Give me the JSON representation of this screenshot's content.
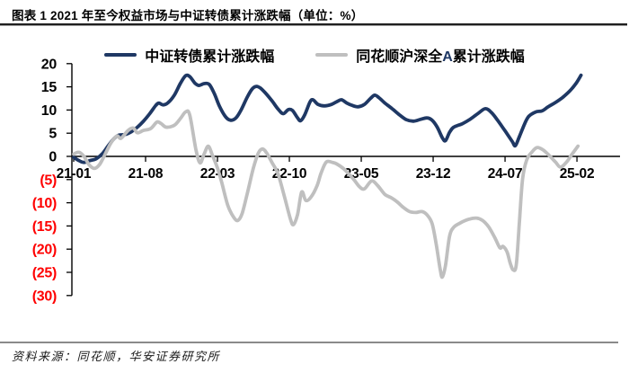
{
  "header": {
    "title": "图表 1  2021 年至今权益市场与中证转债累计涨跌幅（单位：%）"
  },
  "legend": {
    "items": [
      {
        "name": "中证转债累计涨跌幅",
        "color": "#1F3864"
      },
      {
        "name": "同花顺沪深全A累计涨跌幅",
        "color": "#BFBFBF",
        "accent_char": "A",
        "accent_color": "#1F3864"
      }
    ]
  },
  "chart_data": {
    "type": "line",
    "title": "2021 年至今权益市场与中证转债累计涨跌幅",
    "unit": "%",
    "grid": false,
    "legend_position": "top",
    "x_axis": {
      "start_month": "2021-01",
      "end_month": "2025-02",
      "tick_labels": [
        "21-01",
        "21-08",
        "22-03",
        "22-10",
        "23-05",
        "23-12",
        "24-07",
        "25-02"
      ],
      "tick_months": [
        0,
        7,
        14,
        21,
        28,
        35,
        42,
        49
      ]
    },
    "y_axis": {
      "ylim": [
        -30,
        20
      ],
      "ticks": [
        20,
        15,
        10,
        5,
        0,
        -5,
        -10,
        -15,
        -20,
        -25,
        -30
      ],
      "tick_labels": [
        "20",
        "15",
        "10",
        "5",
        "0",
        "(5)",
        "(10)",
        "(15)",
        "(20)",
        "(25)",
        "(30)"
      ],
      "positive_color": "#000000",
      "negative_color": "#FF0000"
    },
    "series": [
      {
        "name": "中证转债累计涨跌幅",
        "color": "#1F3864",
        "stroke_width": 3.8,
        "points_format": [
          "months_since_2021_01",
          "cumulative_pct"
        ],
        "points": [
          [
            0,
            -0.2
          ],
          [
            0.5,
            -0.9
          ],
          [
            1,
            -1.3
          ],
          [
            1.6,
            -0.9
          ],
          [
            2.2,
            -0.5
          ],
          [
            2.8,
            0.6
          ],
          [
            3.4,
            2.4
          ],
          [
            4,
            4
          ],
          [
            4.4,
            4.6
          ],
          [
            5,
            4.7
          ],
          [
            5.6,
            5.3
          ],
          [
            6.2,
            6.3
          ],
          [
            6.8,
            7.6
          ],
          [
            7.4,
            9.2
          ],
          [
            8,
            11
          ],
          [
            8.3,
            11.5
          ],
          [
            8.7,
            11.1
          ],
          [
            9.2,
            11.6
          ],
          [
            9.8,
            13.2
          ],
          [
            10.4,
            15.8
          ],
          [
            10.9,
            17.4
          ],
          [
            11.3,
            17.2
          ],
          [
            11.8,
            15.8
          ],
          [
            12.2,
            15.3
          ],
          [
            12.7,
            15.7
          ],
          [
            13.2,
            15.5
          ],
          [
            13.7,
            13.5
          ],
          [
            14.2,
            10.8
          ],
          [
            14.8,
            8.5
          ],
          [
            15.3,
            7.8
          ],
          [
            15.8,
            8.3
          ],
          [
            16.3,
            10
          ],
          [
            16.9,
            12.8
          ],
          [
            17.4,
            14.6
          ],
          [
            17.8,
            15.1
          ],
          [
            18.2,
            14.7
          ],
          [
            18.7,
            13.6
          ],
          [
            19.3,
            12
          ],
          [
            19.9,
            10.2
          ],
          [
            20.4,
            9.2
          ],
          [
            20.9,
            10.1
          ],
          [
            21.3,
            9.9
          ],
          [
            21.8,
            8.3
          ],
          [
            22.1,
            7.7
          ],
          [
            22.5,
            9
          ],
          [
            23,
            11.7
          ],
          [
            23.3,
            12.2
          ],
          [
            23.8,
            11.2
          ],
          [
            24.4,
            10.9
          ],
          [
            25.1,
            11.2
          ],
          [
            25.7,
            11.9
          ],
          [
            26.1,
            12.2
          ],
          [
            26.6,
            11.5
          ],
          [
            27.1,
            11
          ],
          [
            27.7,
            10.7
          ],
          [
            28.3,
            11.2
          ],
          [
            28.9,
            12.5
          ],
          [
            29.3,
            13.2
          ],
          [
            29.7,
            12.7
          ],
          [
            30.3,
            11.5
          ],
          [
            31,
            10.3
          ],
          [
            31.7,
            9
          ],
          [
            32.4,
            7.9
          ],
          [
            33.1,
            7.6
          ],
          [
            33.8,
            8
          ],
          [
            34.4,
            8.3
          ],
          [
            34.9,
            7.8
          ],
          [
            35.4,
            6.3
          ],
          [
            35.9,
            4
          ],
          [
            36.2,
            3.4
          ],
          [
            36.6,
            5.2
          ],
          [
            37,
            6.3
          ],
          [
            37.8,
            7
          ],
          [
            38.6,
            8
          ],
          [
            39.4,
            9.3
          ],
          [
            40.1,
            10.3
          ],
          [
            40.7,
            9.4
          ],
          [
            41.3,
            7.7
          ],
          [
            42,
            5.5
          ],
          [
            42.7,
            3.2
          ],
          [
            43,
            2.3
          ],
          [
            43.4,
            4.3
          ],
          [
            43.9,
            7
          ],
          [
            44.3,
            8.6
          ],
          [
            45,
            9.6
          ],
          [
            45.6,
            9.8
          ],
          [
            46.2,
            10.7
          ],
          [
            46.9,
            11.6
          ],
          [
            47.6,
            12.7
          ],
          [
            48.3,
            14.1
          ],
          [
            48.9,
            15.7
          ],
          [
            49.4,
            17.5
          ]
        ]
      },
      {
        "name": "同花顺沪深全A累计涨跌幅",
        "color": "#BFBFBF",
        "stroke_width": 3.8,
        "points_format": [
          "months_since_2021_01",
          "cumulative_pct"
        ],
        "points": [
          [
            0,
            0.5
          ],
          [
            0.5,
            0.9
          ],
          [
            1,
            0
          ],
          [
            1.5,
            -1.8
          ],
          [
            2,
            -2.6
          ],
          [
            2.5,
            -1.8
          ],
          [
            3,
            0.2
          ],
          [
            3.6,
            2.8
          ],
          [
            4.2,
            4.4
          ],
          [
            4.6,
            3.9
          ],
          [
            5.3,
            5.6
          ],
          [
            5.8,
            6.1
          ],
          [
            6.2,
            5.1
          ],
          [
            6.8,
            5.6
          ],
          [
            7.5,
            6
          ],
          [
            8.1,
            7.4
          ],
          [
            8.5,
            7.1
          ],
          [
            9,
            6.3
          ],
          [
            9.8,
            6.7
          ],
          [
            10.4,
            8.2
          ],
          [
            10.9,
            9.6
          ],
          [
            11.3,
            8.9
          ],
          [
            11.9,
            1.5
          ],
          [
            12.3,
            -1.4
          ],
          [
            12.7,
            0.5
          ],
          [
            13.1,
            2.2
          ],
          [
            13.5,
            0.3
          ],
          [
            14,
            -2.5
          ],
          [
            14.4,
            -5.5
          ],
          [
            15,
            -10.5
          ],
          [
            15.6,
            -13.2
          ],
          [
            16,
            -13.8
          ],
          [
            16.4,
            -12.3
          ],
          [
            16.9,
            -8
          ],
          [
            17.5,
            -2.5
          ],
          [
            18,
            0.8
          ],
          [
            18.4,
            1.6
          ],
          [
            18.8,
            0.7
          ],
          [
            19.3,
            -1.3
          ],
          [
            19.9,
            -3.8
          ],
          [
            20.5,
            -8.5
          ],
          [
            21.1,
            -13.5
          ],
          [
            21.4,
            -14.7
          ],
          [
            21.8,
            -12.5
          ],
          [
            22.2,
            -7.7
          ],
          [
            22.6,
            -9.5
          ],
          [
            23.1,
            -8.8
          ],
          [
            23.7,
            -6.3
          ],
          [
            24.1,
            -3.5
          ],
          [
            24.6,
            -1.2
          ],
          [
            25.2,
            -1.3
          ],
          [
            25.6,
            -1.6
          ],
          [
            26.3,
            -2.7
          ],
          [
            27.2,
            -4.8
          ],
          [
            27.8,
            -6.5
          ],
          [
            28.3,
            -7
          ],
          [
            29,
            -5.3
          ],
          [
            29.6,
            -6.3
          ],
          [
            30.3,
            -8.2
          ],
          [
            30.9,
            -8.9
          ],
          [
            31.5,
            -9.8
          ],
          [
            32.1,
            -11
          ],
          [
            32.7,
            -11.9
          ],
          [
            33.3,
            -12.1
          ],
          [
            33.9,
            -11.9
          ],
          [
            34.4,
            -12.6
          ],
          [
            34.9,
            -14.5
          ],
          [
            35.3,
            -19
          ],
          [
            35.7,
            -24.6
          ],
          [
            35.9,
            -26
          ],
          [
            36.2,
            -23.5
          ],
          [
            36.6,
            -17.2
          ],
          [
            37,
            -15.3
          ],
          [
            37.6,
            -14.4
          ],
          [
            38.4,
            -13.6
          ],
          [
            39.2,
            -13.3
          ],
          [
            39.8,
            -13.8
          ],
          [
            40.4,
            -15.2
          ],
          [
            41,
            -17.5
          ],
          [
            41.5,
            -19.7
          ],
          [
            41.8,
            -19.4
          ],
          [
            42.2,
            -20.6
          ],
          [
            42.5,
            -23
          ],
          [
            42.8,
            -24.5
          ],
          [
            43.1,
            -23.3
          ],
          [
            43.4,
            -14
          ],
          [
            43.7,
            -5
          ],
          [
            44.1,
            -0.8
          ],
          [
            44.6,
            0.9
          ],
          [
            45.1,
            1.9
          ],
          [
            45.7,
            1.4
          ],
          [
            46.3,
            0.2
          ],
          [
            46.9,
            -1.2
          ],
          [
            47.4,
            -2.3
          ],
          [
            48,
            -1.2
          ],
          [
            48.5,
            0.4
          ],
          [
            49.1,
            2.2
          ]
        ]
      }
    ]
  },
  "footer": {
    "source": "资料来源：同花顺，华安证券研究所"
  }
}
